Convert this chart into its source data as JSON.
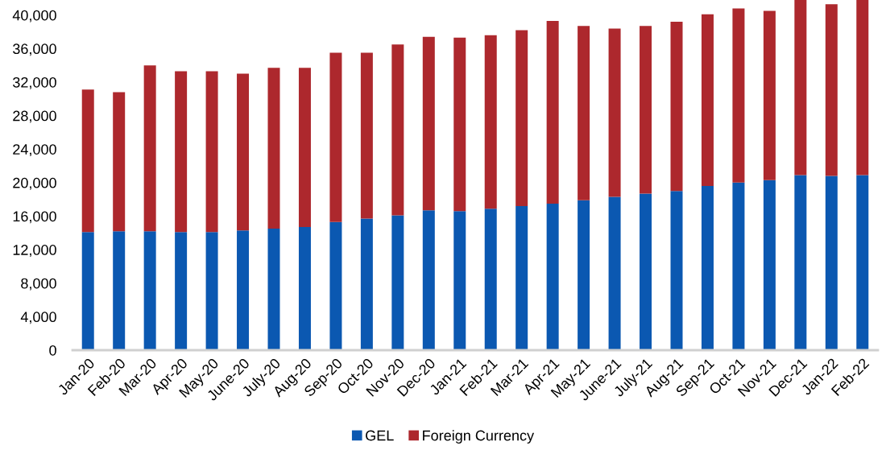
{
  "chart_data": {
    "type": "bar",
    "stacked": true,
    "categories": [
      "Jan-20",
      "Feb-20",
      "Mar-20",
      "Apr-20",
      "May-20",
      "June-20",
      "July-20",
      "Aug-20",
      "Sep-20",
      "Oct-20",
      "Nov-20",
      "Dec-20",
      "Jan-21",
      "Feb-21",
      "Mar-21",
      "Apr-21",
      "May-21",
      "June-21",
      "July-21",
      "Aug-21",
      "Sep-21",
      "Oct-21",
      "Nov-21",
      "Dec-21",
      "Jan-22",
      "Feb-22"
    ],
    "series": [
      {
        "name": "GEL",
        "color": "#0b58b1",
        "values": [
          14100,
          14200,
          14200,
          14100,
          14100,
          14300,
          14500,
          14700,
          15300,
          15700,
          16100,
          16700,
          16600,
          16900,
          17200,
          17500,
          17900,
          18300,
          18700,
          19000,
          19600,
          20000,
          20300,
          20900,
          20800,
          20900
        ]
      },
      {
        "name": "Foreign Currency",
        "color": "#ad282d",
        "values": [
          17000,
          16600,
          19800,
          19200,
          19200,
          18700,
          19200,
          19000,
          20200,
          19800,
          20400,
          20700,
          20700,
          20700,
          21000,
          21800,
          20800,
          20100,
          20000,
          20200,
          20500,
          20800,
          20200,
          20900,
          20500,
          20900
        ]
      }
    ],
    "ylim": [
      0,
      41800
    ],
    "yticks": [
      0,
      {
        "value": 4000,
        "label": "4,000"
      },
      {
        "value": 8000,
        "label": "8,000"
      },
      {
        "value": 12000,
        "label": "12,000"
      },
      {
        "value": 16000,
        "label": "16,000"
      },
      {
        "value": 20000,
        "label": "20,000"
      },
      {
        "value": 24000,
        "label": "24,000"
      },
      {
        "value": 28000,
        "label": "28,000"
      },
      {
        "value": 32000,
        "label": "32,000"
      },
      {
        "value": 36000,
        "label": "36,000"
      },
      {
        "value": 40000,
        "label": "40,000"
      }
    ],
    "legend": "bottom",
    "grid": false
  }
}
